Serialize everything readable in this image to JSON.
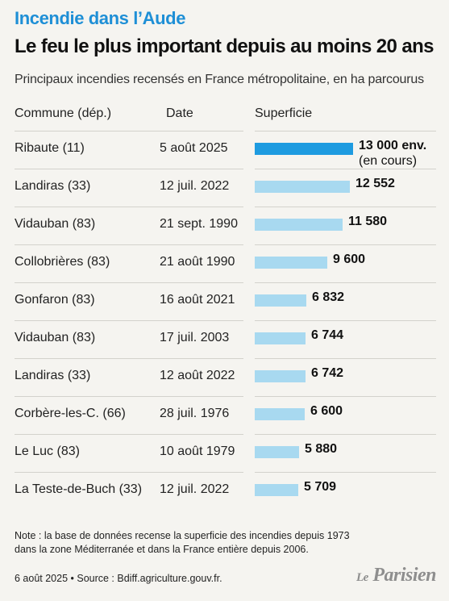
{
  "kicker": "Incendie dans l’Aude",
  "headline": "Le feu le plus important depuis au moins 20 ans",
  "subtitle": "Principaux incendies recensés en France métropolitaine, en ha parcourus",
  "columns": {
    "commune": "Commune (dép.)",
    "date": "Date",
    "superficie": "Superficie"
  },
  "colors": {
    "current_bar": "#1e9be0",
    "other_bar": "#a8d9f0",
    "kicker": "#1e8fd6"
  },
  "chart_data": {
    "type": "bar",
    "orientation": "horizontal",
    "categories": [
      "Ribaute (11)",
      "Landiras (33)",
      "Vidauban (83)",
      "Collobrières (83)",
      "Gonfaron (83)",
      "Vidauban (83)",
      "Landiras (33)",
      "Corbère-les-C. (66)",
      "Le Luc (83)",
      "La Teste-de-Buch (33)"
    ],
    "dates": [
      "5 août 2025",
      "12 juil. 2022",
      "21 sept. 1990",
      "21 août 1990",
      "16 août 2021",
      "17 juil. 2003",
      "12 août 2022",
      "28 juil. 1976",
      "10 août 1979",
      "12 juil. 2022"
    ],
    "values": [
      13000,
      12552,
      11580,
      9600,
      6832,
      6744,
      6742,
      6600,
      5880,
      5709
    ],
    "value_labels": [
      "13 000 env.",
      "12 552",
      "11 580",
      "9 600",
      "6 832",
      "6 744",
      "6 742",
      "6 600",
      "5 880",
      "5 709"
    ],
    "value_notes": [
      "(en cours)",
      "",
      "",
      "",
      "",
      "",
      "",
      "",
      "",
      ""
    ],
    "highlight_index": 0
  },
  "note_line1": "Note : la base de données recense la superficie des incendies depuis 1973",
  "note_line2": "dans la zone Méditerranée et dans la France entière depuis 2006.",
  "footer": "6 août 2025 • Source : Bdiff.agriculture.gouv.fr.",
  "logo": {
    "le": "Le",
    "name": "Parisien"
  }
}
